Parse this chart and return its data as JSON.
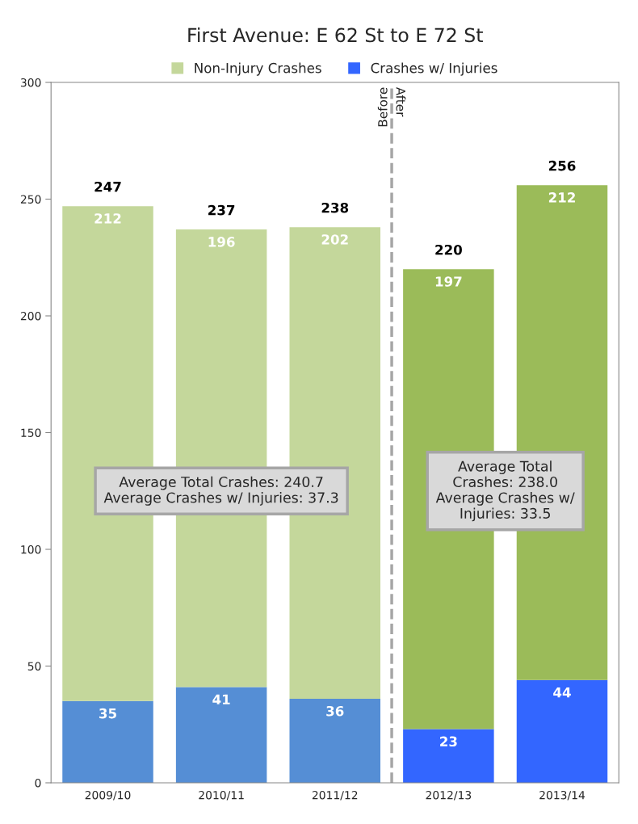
{
  "chart_data": {
    "type": "bar",
    "stacked": true,
    "title": "First Avenue: E 62 St to E 72 St",
    "categories": [
      "2009/10",
      "2010/11",
      "2011/12",
      "2012/13",
      "2013/14"
    ],
    "series": [
      {
        "name": "Crashes w/ Injuries",
        "color": "#3366ff",
        "colors": [
          "#558ed5",
          "#558ed5",
          "#558ed5",
          "#3366ff",
          "#3366ff"
        ],
        "values": [
          35,
          41,
          36,
          23,
          44
        ]
      },
      {
        "name": "Non-Injury Crashes",
        "color": "#c4d79b",
        "colors": [
          "#c4d79b",
          "#c4d79b",
          "#c4d79b",
          "#9bbb59",
          "#9bbb59"
        ],
        "values": [
          212,
          196,
          202,
          197,
          212
        ]
      }
    ],
    "totals": [
      "247",
      "237",
      "238",
      "220",
      "256"
    ],
    "data_labels": true,
    "ylim": [
      0,
      300
    ],
    "yticks": [
      0,
      50,
      100,
      150,
      200,
      250,
      300
    ],
    "grid": false,
    "legend": "top",
    "annotations": [
      "Average Total Crashes: 240.7\nAverage Crashes w/ Injuries: 37.3",
      "Average Total\nCrashes: 238.0\nAverage Crashes w/\nInjuries: 33.5",
      "Before",
      "After"
    ]
  }
}
